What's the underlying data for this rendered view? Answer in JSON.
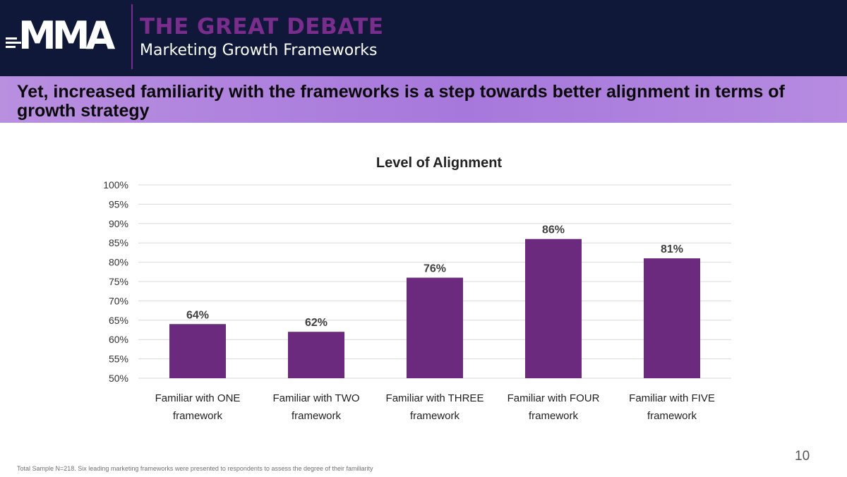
{
  "header": {
    "logo_text": "MMA",
    "title": "THE GREAT DEBATE",
    "subtitle": "Marketing Growth Frameworks"
  },
  "banner": {
    "text": "Yet, increased familiarity with the frameworks is a step towards better alignment in terms of growth strategy"
  },
  "chart_data": {
    "type": "bar",
    "title": "Level of Alignment",
    "categories": [
      "Familiar with ONE framework",
      "Familiar with TWO framework",
      "Familiar with THREE framework",
      "Familiar with FOUR framework",
      "Familiar with FIVE framework"
    ],
    "category_lines": [
      [
        "Familiar with ONE",
        "framework"
      ],
      [
        "Familiar with TWO",
        "framework"
      ],
      [
        "Familiar with THREE",
        "framework"
      ],
      [
        "Familiar with FOUR",
        "framework"
      ],
      [
        "Familiar with FIVE",
        "framework"
      ]
    ],
    "values": [
      64,
      62,
      76,
      86,
      81
    ],
    "data_labels": [
      "64%",
      "62%",
      "76%",
      "86%",
      "81%"
    ],
    "ylim": [
      50,
      100
    ],
    "yticks": [
      50,
      55,
      60,
      65,
      70,
      75,
      80,
      85,
      90,
      95,
      100
    ],
    "ytick_labels": [
      "50%",
      "55%",
      "60%",
      "65%",
      "70%",
      "75%",
      "80%",
      "85%",
      "90%",
      "95%",
      "100%"
    ],
    "grid": true,
    "bar_color": "#6b2a7e",
    "xlabel": "",
    "ylabel": ""
  },
  "footnote": "Total Sample N=218. Six leading marketing frameworks were presented to respondents  to assess the degree of their familiarity",
  "page_number": "10",
  "colors": {
    "header_bg": "#0f1838",
    "accent_purple": "#7b2d8e",
    "banner_bg": "#b28ae0"
  }
}
